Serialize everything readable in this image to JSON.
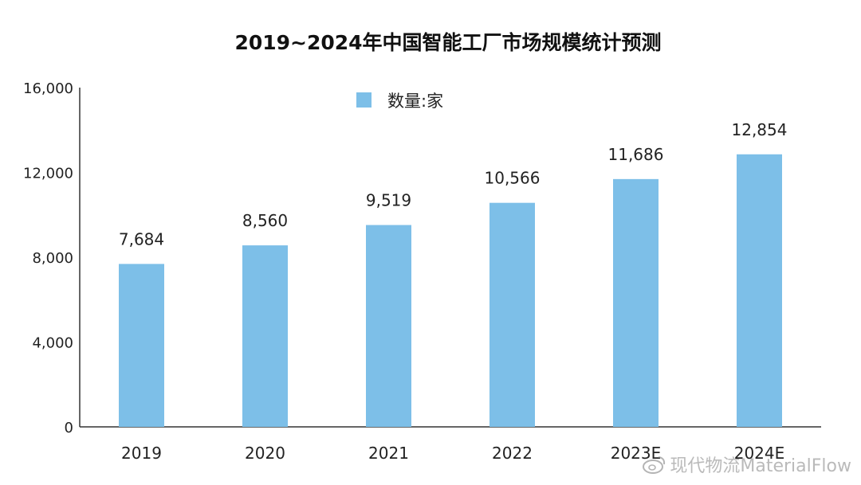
{
  "chart_data": {
    "type": "bar",
    "title": "2019~2024年中国智能工厂市场规模统计预测",
    "categories": [
      "2019",
      "2020",
      "2021",
      "2022",
      "2023E",
      "2024E"
    ],
    "series": [
      {
        "name": "数量:家",
        "values": [
          7684,
          8560,
          9519,
          10566,
          11686,
          12854
        ]
      }
    ],
    "data_labels": [
      "7,684",
      "8,560",
      "9,519",
      "10,566",
      "11,686",
      "12,854"
    ],
    "y_ticks": [
      0,
      4000,
      8000,
      12000,
      16000
    ],
    "y_tick_labels": [
      "0",
      "4,000",
      "8,000",
      "12,000",
      "16,000"
    ],
    "ylim": [
      0,
      16000
    ],
    "xlabel": "",
    "ylabel": "",
    "legend_position": "top-center",
    "bar_color": "#7dbfe8",
    "grid": false
  },
  "watermark": {
    "text": "现代物流MaterialFlow",
    "icon": "weibo-icon"
  }
}
